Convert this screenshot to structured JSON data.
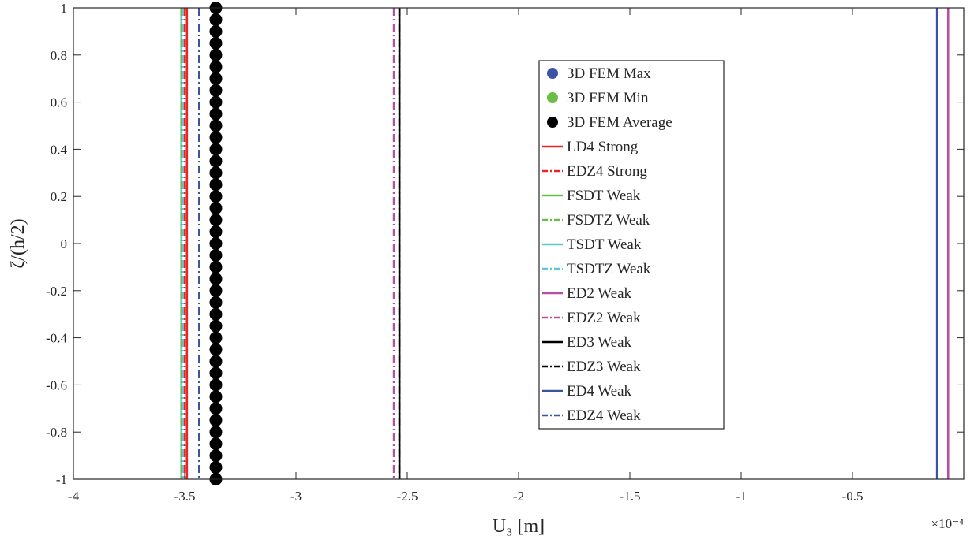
{
  "chart_data": {
    "type": "line",
    "title": "",
    "xlabel": "U₃ [m]",
    "ylabel": "ζ/(h/2)",
    "x_exponent_label": "×10⁻⁴",
    "x_scale": 0.0001,
    "xlim": [
      -4,
      0
    ],
    "ylim": [
      -1,
      1
    ],
    "x_ticks": [
      -4,
      -3.5,
      -3,
      -2.5,
      -2,
      -1.5,
      -1,
      -0.5,
      0
    ],
    "x_tick_labels": [
      "-4",
      "-3.5",
      "-3",
      "-2.5",
      "-2",
      "-1.5",
      "-1",
      "-0.5",
      ""
    ],
    "y_ticks": [
      1,
      0.8,
      0.6,
      0.4,
      0.2,
      0,
      -0.2,
      -0.4,
      -0.6,
      -0.8,
      -1
    ],
    "y_tick_labels": [
      "1",
      "0.8",
      "0.6",
      "0.4",
      "0.2",
      "0",
      "-0.2",
      "-0.4",
      "-0.6",
      "-0.8",
      "-1"
    ],
    "grid": false,
    "legend_position": "center-right",
    "series": [
      {
        "name": "3D FEM Max",
        "kind": "marker",
        "color": "#3a53a4",
        "x": -3.36,
        "visible": false
      },
      {
        "name": "3D FEM Min",
        "kind": "marker",
        "color": "#6abd45",
        "x": -3.36,
        "visible": false
      },
      {
        "name": "3D FEM Average",
        "kind": "marker",
        "color": "#000000",
        "x": -3.36,
        "y": [
          1,
          0.95,
          0.9,
          0.85,
          0.8,
          0.75,
          0.7,
          0.65,
          0.6,
          0.55,
          0.5,
          0.45,
          0.4,
          0.35,
          0.3,
          0.25,
          0.2,
          0.15,
          0.1,
          0.05,
          0,
          -0.05,
          -0.1,
          -0.15,
          -0.2,
          -0.25,
          -0.3,
          -0.35,
          -0.4,
          -0.45,
          -0.5,
          -0.55,
          -0.6,
          -0.65,
          -0.7,
          -0.75,
          -0.8,
          -0.85,
          -0.9,
          -0.95,
          -1
        ]
      },
      {
        "name": "LD4 Strong",
        "kind": "line",
        "style": "solid",
        "color": "#e8262a",
        "x": -3.49
      },
      {
        "name": "EDZ4 Strong",
        "kind": "line",
        "style": "dashdot",
        "color": "#e8262a",
        "x": -3.5
      },
      {
        "name": "FSDT Weak",
        "kind": "line",
        "style": "solid",
        "color": "#6abd45",
        "x": -3.515
      },
      {
        "name": "FSDTZ Weak",
        "kind": "line",
        "style": "dashdot",
        "color": "#6abd45",
        "x": -3.515
      },
      {
        "name": "TSDT Weak",
        "kind": "line",
        "style": "solid",
        "color": "#5bc8d6",
        "x": -3.515
      },
      {
        "name": "TSDTZ Weak",
        "kind": "line",
        "style": "dashdot",
        "color": "#5bc8d6",
        "x": -3.51
      },
      {
        "name": "ED2 Weak",
        "kind": "line",
        "style": "solid",
        "color": "#b74fa3",
        "x": -0.07
      },
      {
        "name": "EDZ2 Weak",
        "kind": "line",
        "style": "dashdot",
        "color": "#b74fa3",
        "x": -2.56
      },
      {
        "name": "ED3 Weak",
        "kind": "line",
        "style": "solid",
        "color": "#000000",
        "x": -2.535
      },
      {
        "name": "EDZ3 Weak",
        "kind": "line",
        "style": "dashdot",
        "color": "#000000",
        "x": -2.535
      },
      {
        "name": "ED4 Weak",
        "kind": "line",
        "style": "solid",
        "color": "#3a53a4",
        "x": -0.12
      },
      {
        "name": "EDZ4 Weak",
        "kind": "line",
        "style": "dashdot",
        "color": "#3a53a4",
        "x": -3.435
      }
    ]
  }
}
